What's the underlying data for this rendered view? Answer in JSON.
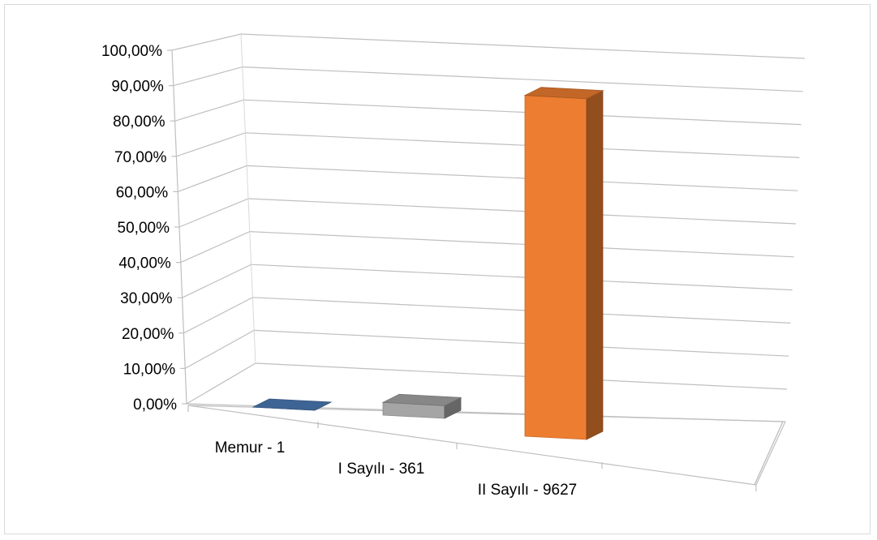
{
  "chart_data": {
    "type": "bar",
    "style": "3d-column",
    "categories": [
      "Memur - 1",
      "I Sayılı - 361",
      "II Sayılı - 9627"
    ],
    "values": [
      0.01,
      3.6,
      96.4
    ],
    "unit": "%",
    "ylim": [
      0,
      100
    ],
    "yticks": [
      "0,00%",
      "10,00%",
      "20,00%",
      "30,00%",
      "40,00%",
      "50,00%",
      "60,00%",
      "70,00%",
      "80,00%",
      "90,00%",
      "100,00%"
    ],
    "grid": true,
    "legend": "none",
    "colors": [
      "#4a7ab5",
      "#a5a5a5",
      "#ed7d31"
    ]
  }
}
